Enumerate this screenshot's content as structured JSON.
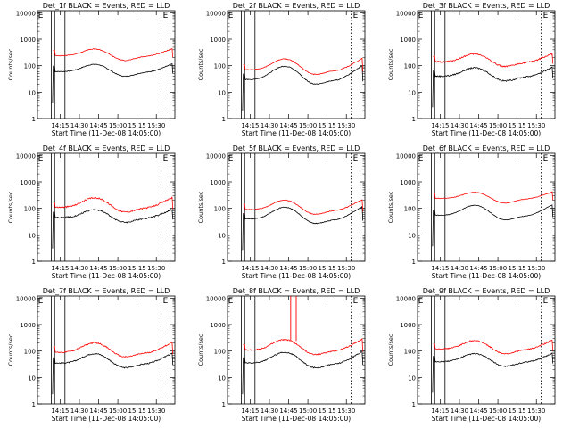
{
  "colors": {
    "events": "#000000",
    "lld": "#ff0000",
    "axis": "#000000",
    "background": "#ffffff"
  },
  "chart_data": [
    {
      "type": "line",
      "title": "Det_1f BLACK = Events, RED = LLD",
      "xlabel": "Start Time (11-Dec-08 14:05:00)",
      "ylabel": "Counts/sec",
      "x_ticks": [
        "14:15",
        "14:30",
        "14:45",
        "15:00",
        "15:15",
        "15:30"
      ],
      "y_ticks": [
        "1",
        "10",
        "100",
        "1000",
        "10000"
      ],
      "ylim": [
        1,
        12000
      ],
      "y_scale": "log",
      "markers": [
        "E",
        "E"
      ],
      "series": [
        {
          "name": "Events",
          "color": "#000000",
          "base": 60,
          "amp": 1.9,
          "phase": 0,
          "noise": 0.03
        },
        {
          "name": "LLD",
          "color": "#ff0000",
          "base": 240,
          "amp": 1.8,
          "phase": 0,
          "noise": 0.03
        }
      ],
      "glitch": 1,
      "has_lld_spike": false
    },
    {
      "type": "line",
      "title": "Det_2f BLACK = Events, RED = LLD",
      "xlabel": "Start Time (11-Dec-08 14:05:00)",
      "ylabel": "Counts/sec",
      "x_ticks": [
        "14:15",
        "14:30",
        "14:45",
        "15:00",
        "15:15",
        "15:30"
      ],
      "y_ticks": [
        "1",
        "10",
        "100",
        "1000",
        "10000"
      ],
      "ylim": [
        1,
        12000
      ],
      "y_scale": "log",
      "markers": [
        "E",
        "E"
      ],
      "series": [
        {
          "name": "Events",
          "color": "#000000",
          "base": 30,
          "amp": 3.2,
          "phase": 0,
          "noise": 0.03
        },
        {
          "name": "LLD",
          "color": "#ff0000",
          "base": 70,
          "amp": 2.6,
          "phase": 0,
          "noise": 0.03
        }
      ],
      "glitch": 1,
      "has_lld_spike": false
    },
    {
      "type": "line",
      "title": "Det_3f BLACK = Events, RED = LLD",
      "xlabel": "Start Time (11-Dec-08 14:05:00)",
      "ylabel": "Counts/sec",
      "x_ticks": [
        "14:15",
        "14:30",
        "14:45",
        "15:00",
        "15:15",
        "15:30"
      ],
      "y_ticks": [
        "1",
        "10",
        "100",
        "1000",
        "10000"
      ],
      "ylim": [
        1,
        12000
      ],
      "y_scale": "log",
      "markers": [
        "E",
        "E"
      ],
      "series": [
        {
          "name": "Events",
          "color": "#000000",
          "base": 40,
          "amp": 2.1,
          "phase": 0,
          "noise": 0.06
        },
        {
          "name": "LLD",
          "color": "#ff0000",
          "base": 140,
          "amp": 2.0,
          "phase": 0,
          "noise": 0.06
        }
      ],
      "glitch": 1,
      "has_lld_spike": false
    },
    {
      "type": "line",
      "title": "Det_4f BLACK = Events, RED = LLD",
      "xlabel": "Start Time (11-Dec-08 14:05:00)",
      "ylabel": "Counts/sec",
      "x_ticks": [
        "14:15",
        "14:30",
        "14:45",
        "15:00",
        "15:15",
        "15:30"
      ],
      "y_ticks": [
        "1",
        "10",
        "100",
        "1000",
        "10000"
      ],
      "ylim": [
        1,
        12000
      ],
      "y_scale": "log",
      "markers": [
        "E",
        "E"
      ],
      "series": [
        {
          "name": "Events",
          "color": "#000000",
          "base": 45,
          "amp": 2.0,
          "phase": 0,
          "noise": 0.06
        },
        {
          "name": "LLD",
          "color": "#ff0000",
          "base": 110,
          "amp": 2.3,
          "phase": 0,
          "noise": 0.06
        }
      ],
      "glitch": 1,
      "has_lld_spike": false
    },
    {
      "type": "line",
      "title": "Det_5f BLACK = Events, RED = LLD",
      "xlabel": "Start Time (11-Dec-08 14:05:00)",
      "ylabel": "Counts/sec",
      "x_ticks": [
        "14:15",
        "14:30",
        "14:45",
        "15:00",
        "15:15",
        "15:30"
      ],
      "y_ticks": [
        "1",
        "10",
        "100",
        "1000",
        "10000"
      ],
      "ylim": [
        1,
        12000
      ],
      "y_scale": "log",
      "markers": [
        "E",
        "E"
      ],
      "series": [
        {
          "name": "Events",
          "color": "#000000",
          "base": 40,
          "amp": 2.8,
          "phase": 0,
          "noise": 0.03
        },
        {
          "name": "LLD",
          "color": "#ff0000",
          "base": 90,
          "amp": 2.3,
          "phase": 0,
          "noise": 0.03
        }
      ],
      "glitch": 1,
      "has_lld_spike": false
    },
    {
      "type": "line",
      "title": "Det_6f BLACK = Events, RED = LLD",
      "xlabel": "Start Time (11-Dec-08 14:05:00)",
      "ylabel": "Counts/sec",
      "x_ticks": [
        "14:15",
        "14:30",
        "14:45",
        "15:00",
        "15:15",
        "15:30"
      ],
      "y_ticks": [
        "1",
        "10",
        "100",
        "1000",
        "10000"
      ],
      "ylim": [
        1,
        12000
      ],
      "y_scale": "log",
      "markers": [
        "E",
        "E"
      ],
      "series": [
        {
          "name": "Events",
          "color": "#000000",
          "base": 55,
          "amp": 2.4,
          "phase": 0,
          "noise": 0.02
        },
        {
          "name": "LLD",
          "color": "#ff0000",
          "base": 240,
          "amp": 1.7,
          "phase": 0,
          "noise": 0.02
        }
      ],
      "glitch": 1,
      "has_lld_spike": false
    },
    {
      "type": "line",
      "title": "Det_7f BLACK = Events, RED = LLD",
      "xlabel": "Start Time (11-Dec-08 14:05:00)",
      "ylabel": "Counts/sec",
      "x_ticks": [
        "14:15",
        "14:30",
        "14:45",
        "15:00",
        "15:15",
        "15:30"
      ],
      "y_ticks": [
        "1",
        "10",
        "100",
        "1000",
        "10000"
      ],
      "ylim": [
        1,
        12000
      ],
      "y_scale": "log",
      "markers": [
        "E",
        "E"
      ],
      "series": [
        {
          "name": "Events",
          "color": "#000000",
          "base": 35,
          "amp": 2.3,
          "phase": 0,
          "noise": 0.05
        },
        {
          "name": "LLD",
          "color": "#ff0000",
          "base": 90,
          "amp": 2.3,
          "phase": 0,
          "noise": 0.05
        }
      ],
      "glitch": 1,
      "has_lld_spike": false
    },
    {
      "type": "line",
      "title": "Det_8f BLACK = Events, RED = LLD",
      "xlabel": "Start Time (11-Dec-08 14:05:00)",
      "ylabel": "Counts/sec",
      "x_ticks": [
        "14:15",
        "14:30",
        "14:45",
        "15:00",
        "15:15",
        "15:30"
      ],
      "y_ticks": [
        "1",
        "10",
        "100",
        "1000",
        "10000"
      ],
      "ylim": [
        1,
        12000
      ],
      "y_scale": "log",
      "markers": [
        "E",
        "E"
      ],
      "series": [
        {
          "name": "Events",
          "color": "#000000",
          "base": 35,
          "amp": 2.6,
          "phase": 0,
          "noise": 0.05
        },
        {
          "name": "LLD",
          "color": "#ff0000",
          "base": 110,
          "amp": 2.5,
          "phase": 0,
          "noise": 0.05
        }
      ],
      "glitch": 1,
      "has_lld_spike": true
    },
    {
      "type": "line",
      "title": "Det_9f BLACK = Events, RED = LLD",
      "xlabel": "Start Time (11-Dec-08 14:05:00)",
      "ylabel": "Counts/sec",
      "x_ticks": [
        "14:15",
        "14:30",
        "14:45",
        "15:00",
        "15:15",
        "15:30"
      ],
      "y_ticks": [
        "1",
        "10",
        "100",
        "1000",
        "10000"
      ],
      "ylim": [
        1,
        12000
      ],
      "y_scale": "log",
      "markers": [
        "E",
        "E"
      ],
      "series": [
        {
          "name": "Events",
          "color": "#000000",
          "base": 40,
          "amp": 2.0,
          "phase": 0,
          "noise": 0.05
        },
        {
          "name": "LLD",
          "color": "#ff0000",
          "base": 120,
          "amp": 2.1,
          "phase": 0,
          "noise": 0.05
        }
      ],
      "glitch": 1,
      "has_lld_spike": false
    }
  ]
}
